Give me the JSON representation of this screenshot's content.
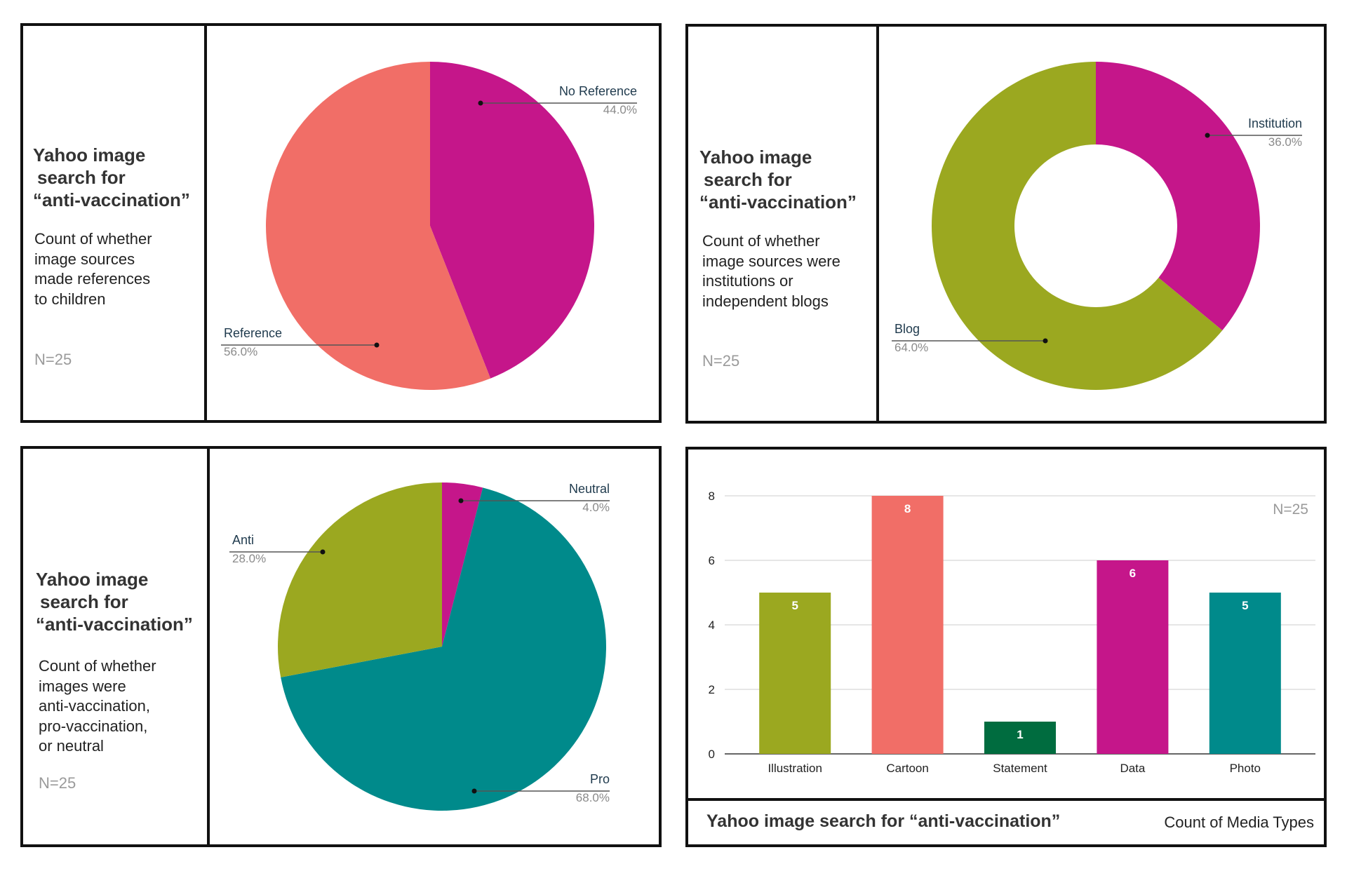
{
  "panels": [
    {
      "title_lines": [
        "Yahoo image",
        "search for",
        "“anti-vaccination”"
      ],
      "description_lines": [
        "Count of whether",
        "image sources",
        "made references",
        "to children"
      ],
      "n_label": "N=25"
    },
    {
      "title_lines": [
        "Yahoo image",
        "search for",
        "“anti-vaccination”"
      ],
      "description_lines": [
        "Count of whether",
        "image sources were",
        "institutions or",
        "independent blogs"
      ],
      "n_label": "N=25"
    },
    {
      "title_lines": [
        "Yahoo image",
        "search for",
        "“anti-vaccination”"
      ],
      "description_lines": [
        "Count of whether",
        "images were",
        "anti-vaccination,",
        "pro-vaccination,",
        "or neutral"
      ],
      "n_label": "N=25"
    },
    {
      "footer_title": "Yahoo image search for “anti-vaccination”",
      "footer_subtitle": "Count of Media Types",
      "n_label": "N=25"
    }
  ],
  "chart_data": [
    {
      "type": "pie",
      "labels": [
        "No Reference",
        "Reference"
      ],
      "values": [
        44.0,
        56.0
      ],
      "value_labels": [
        "44.0%",
        "56.0%"
      ],
      "colors": [
        "#c5168a",
        "#f16e67"
      ]
    },
    {
      "type": "pie",
      "donut": true,
      "labels": [
        "Institution",
        "Blog"
      ],
      "values": [
        36.0,
        64.0
      ],
      "value_labels": [
        "36.0%",
        "64.0%"
      ],
      "colors": [
        "#c5168a",
        "#9ba820"
      ]
    },
    {
      "type": "pie",
      "labels": [
        "Neutral",
        "Pro",
        "Anti"
      ],
      "values": [
        4.0,
        68.0,
        28.0
      ],
      "value_labels": [
        "4.0%",
        "68.0%",
        "28.0%"
      ],
      "colors": [
        "#c5168a",
        "#008a8b",
        "#9ba820"
      ]
    },
    {
      "type": "bar",
      "categories": [
        "Illustration",
        "Cartoon",
        "Statement",
        "Data",
        "Photo"
      ],
      "values": [
        5,
        8,
        1,
        6,
        5
      ],
      "colors": [
        "#9ba820",
        "#f16e67",
        "#006c3f",
        "#c5168a",
        "#008a8b"
      ],
      "y_ticks": [
        0,
        2,
        4,
        6,
        8
      ],
      "ylim": [
        0,
        8
      ],
      "grid": true
    }
  ]
}
